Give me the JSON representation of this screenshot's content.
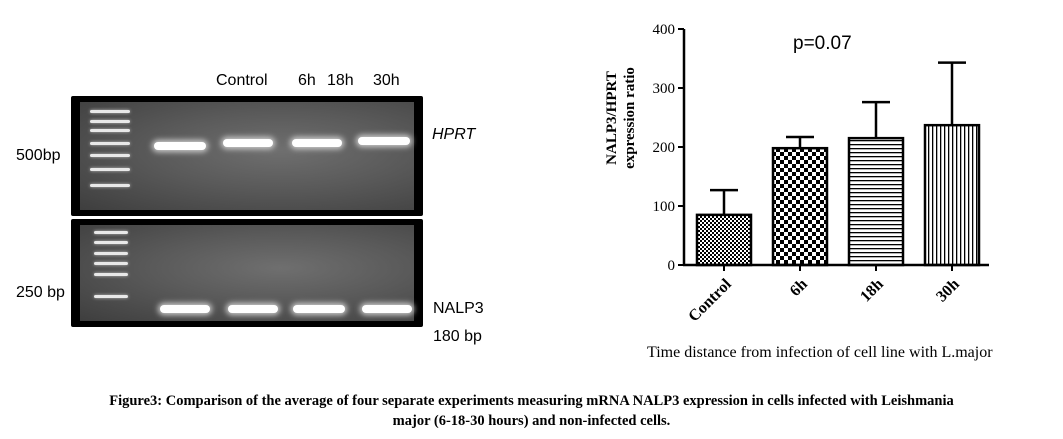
{
  "gel": {
    "lane_labels": [
      "Control",
      "6h",
      "18h",
      "30h"
    ],
    "marker_top": "500bp",
    "marker_bottom": "250 bp",
    "gene_top": "HPRT",
    "gene_bottom": "NALP3",
    "product_size": "180 bp"
  },
  "chart_data": {
    "type": "bar",
    "categories": [
      "Control",
      "6h",
      "18h",
      "30h"
    ],
    "values": [
      85,
      198,
      215,
      237
    ],
    "errors_upper": [
      127,
      217,
      276,
      343
    ],
    "patterns": [
      "checker-fine",
      "checker-coarse",
      "horizontal-lines",
      "vertical-lines"
    ],
    "ylabel_line1": "NALP3/HPRT",
    "ylabel_line2": "expression ratio",
    "xlabel": "Time distance from infection of cell line with L.major",
    "annotation": "p=0.07",
    "ylim": [
      0,
      400
    ],
    "yticks": [
      0,
      100,
      200,
      300,
      400
    ],
    "grid": false
  },
  "caption": {
    "line1": "Figure3: Comparison of the average of four separate experiments measuring mRNA NALP3 expression in cells infected with Leishmania",
    "line2": "major (6-18-30 hours) and non-infected cells."
  }
}
